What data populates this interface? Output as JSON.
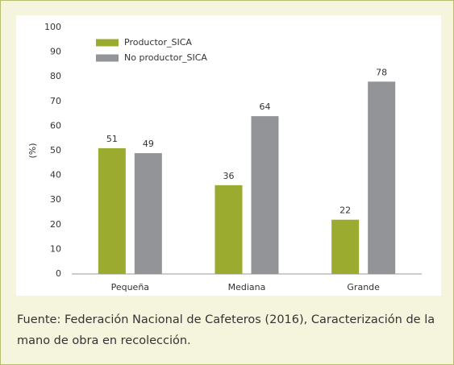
{
  "chart_data": {
    "type": "bar",
    "categories": [
      "Pequeña",
      "Mediana",
      "Grande"
    ],
    "series": [
      {
        "name": "Productor_SICA",
        "color": "#9aab2f",
        "values": [
          51,
          36,
          22
        ]
      },
      {
        "name": "No productor_SICA",
        "color": "#929497",
        "values": [
          49,
          64,
          78
        ]
      }
    ],
    "ylabel": "(%)",
    "ylim": [
      0,
      100
    ],
    "yticks": [
      0,
      10,
      20,
      30,
      40,
      50,
      60,
      70,
      80,
      90,
      100
    ],
    "grid": false,
    "legend": "upper left",
    "source": "Fuente: Federación Nacional de Cafeteros (2016), Caracterización de la mano de obra en recolección."
  }
}
